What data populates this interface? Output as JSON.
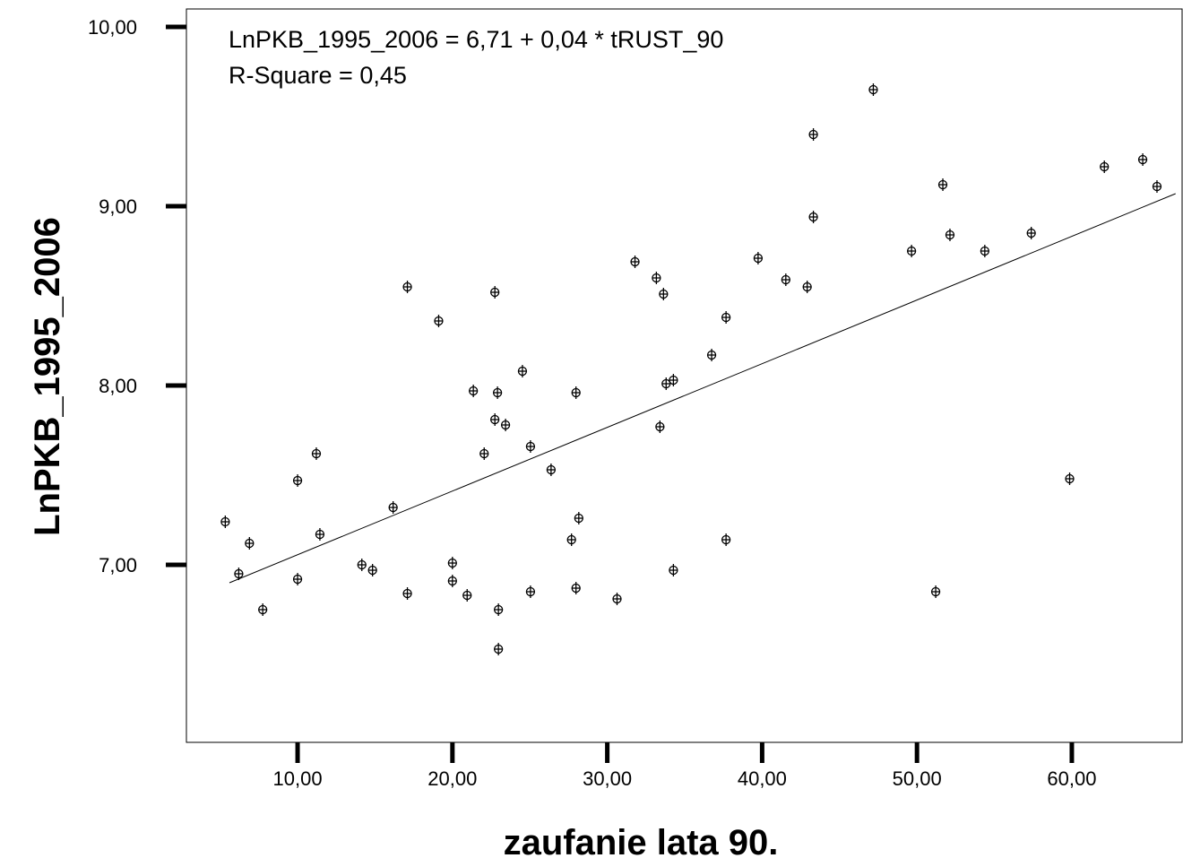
{
  "chart_data": {
    "type": "scatter",
    "annotations": [
      "LnPKB_1995_2006 = 6,71 + 0,04 * tRUST_90",
      "R-Square = 0,45"
    ],
    "x_label": "zaufanie lata 90.",
    "y_label": "LnPKB_1995_2006",
    "color": "#000000",
    "xlim": [
      2.82,
      67.18
    ],
    "ylim": [
      6.01,
      10.1
    ],
    "xticks": [
      {
        "value": 10,
        "label": "10,00"
      },
      {
        "value": 20,
        "label": "20,00"
      },
      {
        "value": 30,
        "label": "30,00"
      },
      {
        "value": 40,
        "label": "40,00"
      },
      {
        "value": 50,
        "label": "50,00"
      },
      {
        "value": 60,
        "label": "60,00"
      }
    ],
    "yticks": [
      {
        "value": 7,
        "label": "7,00"
      },
      {
        "value": 8,
        "label": "8,00"
      },
      {
        "value": 9,
        "label": "9,00"
      },
      {
        "value": 10,
        "label": "10,00"
      }
    ],
    "x": [
      5.33,
      6.2,
      6.89,
      7.75,
      10,
      10,
      11.21,
      11.44,
      14.15,
      14.84,
      16.17,
      17.09,
      17.09,
      19.11,
      20,
      20,
      20.95,
      21.35,
      22.05,
      22.74,
      22.74,
      22.91,
      22.97,
      22.97,
      23.43,
      24.52,
      25.04,
      25.04,
      26.37,
      27.69,
      27.98,
      27.98,
      28.16,
      30.63,
      31.79,
      33.17,
      33.4,
      33.63,
      33.8,
      34.27,
      34.27,
      36.74,
      37.67,
      37.67,
      39.74,
      41.53,
      42.91,
      43.31,
      43.31,
      47.18,
      49.65,
      51.21,
      51.67,
      52.13,
      54.38,
      57.38,
      59.86,
      62.1,
      64.58,
      65.5
    ],
    "values": [
      7.24,
      6.95,
      7.12,
      6.75,
      7.47,
      6.92,
      7.62,
      7.17,
      7.0,
      6.97,
      7.32,
      8.55,
      6.84,
      8.36,
      7.01,
      6.91,
      6.83,
      7.97,
      7.62,
      8.52,
      7.81,
      7.96,
      6.75,
      6.53,
      7.78,
      8.08,
      7.66,
      6.85,
      7.53,
      7.14,
      7.96,
      6.87,
      7.26,
      6.81,
      8.69,
      8.6,
      7.77,
      8.51,
      8.01,
      8.03,
      6.97,
      8.17,
      8.38,
      7.14,
      8.71,
      8.59,
      8.55,
      9.4,
      8.94,
      9.65,
      8.75,
      6.85,
      9.12,
      8.84,
      8.75,
      8.85,
      7.48,
      9.22,
      9.26,
      9.11
    ],
    "fit_line": {
      "x": [
        5.6,
        66.7
      ],
      "y": [
        6.9,
        9.07
      ]
    }
  }
}
